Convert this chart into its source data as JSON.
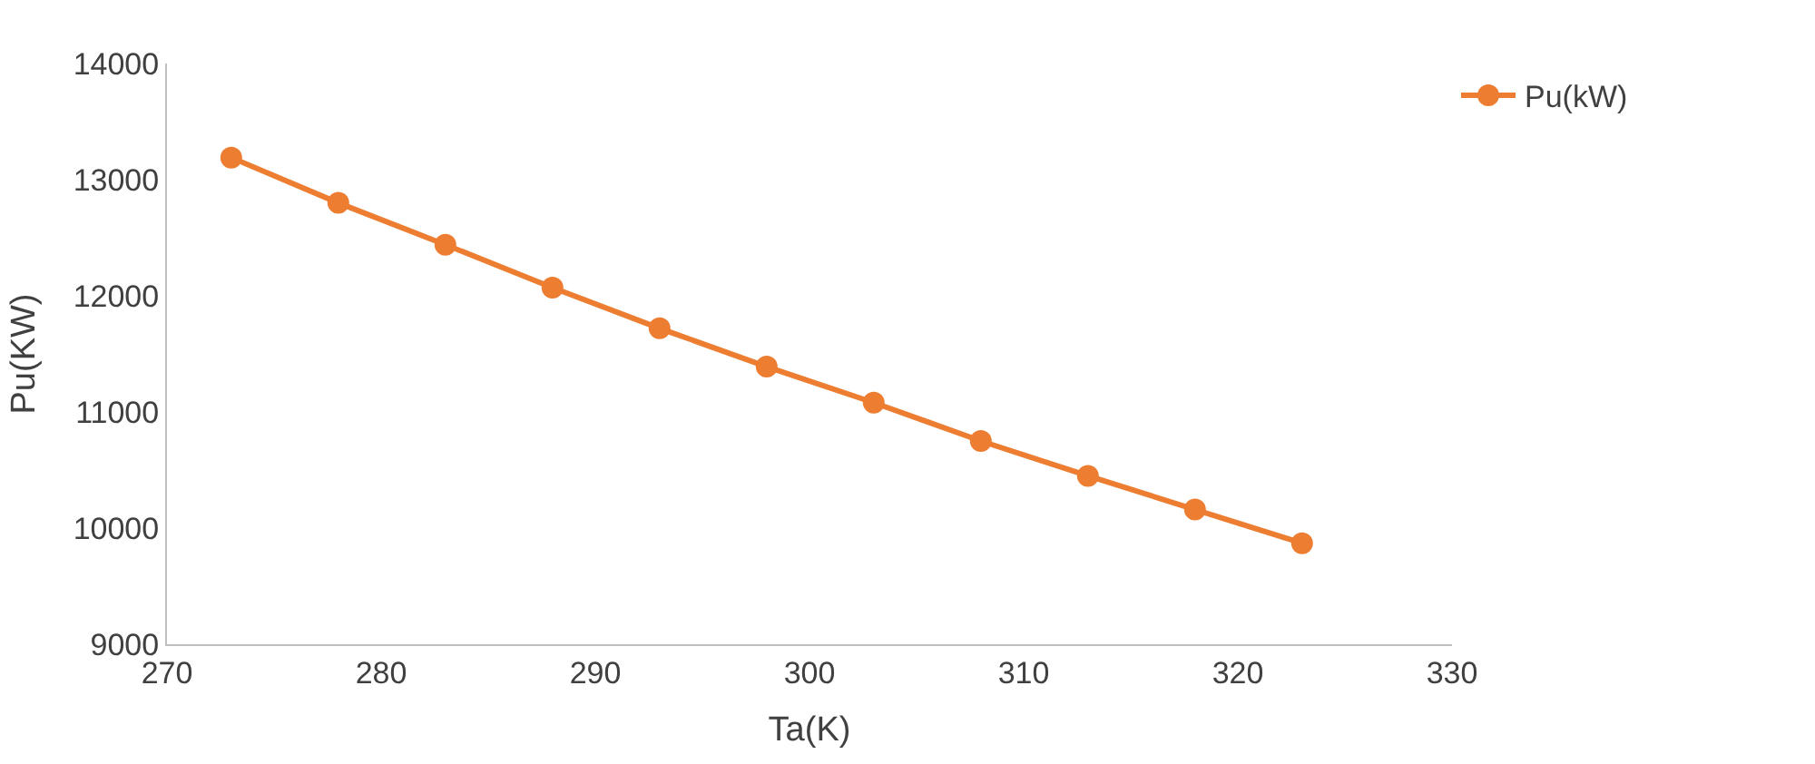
{
  "chart_data": {
    "type": "line",
    "xlabel": "Ta(K)",
    "ylabel": "Pu(KW)",
    "x": [
      273,
      278,
      283,
      288,
      293,
      298,
      303,
      308,
      313,
      318,
      323
    ],
    "series": [
      {
        "name": "Pu(kW)",
        "color": "#ed7d31",
        "values": [
          13190,
          12800,
          12440,
          12070,
          11720,
          11390,
          11080,
          10750,
          10450,
          10160,
          9870
        ]
      }
    ],
    "xlim": [
      270,
      330
    ],
    "xticks": [
      270,
      280,
      290,
      300,
      310,
      320,
      330
    ],
    "ylim": [
      9000,
      14000
    ],
    "yticks": [
      9000,
      10000,
      11000,
      12000,
      13000,
      14000
    ],
    "grid": false,
    "legend": "top right",
    "marker": "circle",
    "line_style": "solid"
  }
}
